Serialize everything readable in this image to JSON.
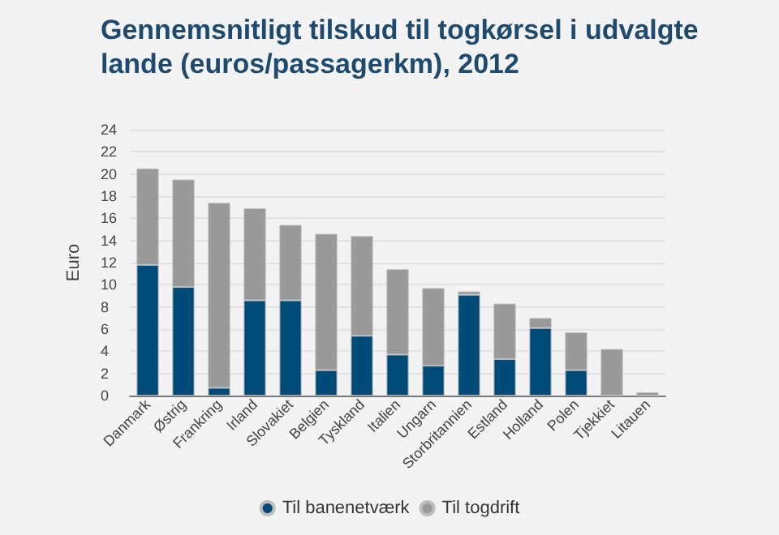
{
  "chart_data": {
    "type": "bar",
    "title": "Gennemsnitligt tilskud til togkørsel i udvalgte lande (euros/passagerkm), 2012",
    "ylabel": "Euro",
    "categories": [
      "Danmark",
      "Østrig",
      "Frankring",
      "Irland",
      "Slovakiet",
      "Belgien",
      "Tyskland",
      "Italien",
      "Ungarn",
      "Storbritannien",
      "Estland",
      "Holland",
      "Polen",
      "Tjekkiet",
      "Litauen"
    ],
    "stacked": true,
    "series": [
      {
        "name": "Til banenetværk",
        "color": "#004a77",
        "values": [
          11.8,
          9.8,
          0.7,
          8.6,
          8.6,
          2.3,
          5.4,
          3.7,
          2.7,
          9.1,
          3.3,
          6.1,
          2.3,
          0,
          0
        ]
      },
      {
        "name": "Til togdrift",
        "color": "#999999",
        "values": [
          8.7,
          9.7,
          16.7,
          8.3,
          6.8,
          12.3,
          9.0,
          7.7,
          7.0,
          0.3,
          5.0,
          0.9,
          3.4,
          4.2,
          0.3
        ]
      }
    ],
    "ylim": [
      0,
      24
    ],
    "yticks": [
      0,
      2,
      4,
      6,
      8,
      10,
      12,
      14,
      16,
      18,
      20,
      22,
      24
    ],
    "grid": "y",
    "legend": "bottom"
  }
}
